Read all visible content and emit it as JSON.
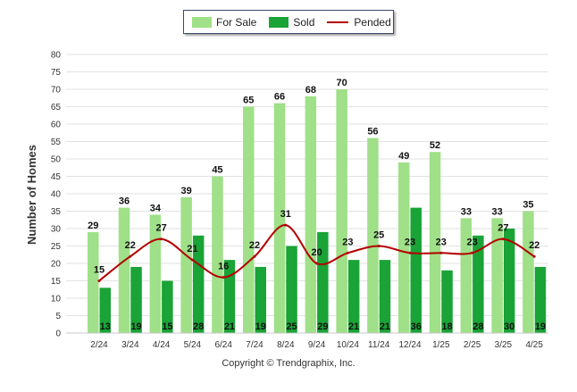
{
  "chart_data": {
    "type": "bar",
    "ylabel": "Number of Homes",
    "xlabel": "",
    "ylim": [
      0,
      80
    ],
    "yticks": [
      0,
      5,
      10,
      15,
      20,
      25,
      30,
      35,
      40,
      45,
      50,
      55,
      60,
      65,
      70,
      75,
      80
    ],
    "categories": [
      "2/24",
      "3/24",
      "4/24",
      "5/24",
      "6/24",
      "7/24",
      "8/24",
      "9/24",
      "10/24",
      "11/24",
      "12/24",
      "1/25",
      "2/25",
      "3/25",
      "4/25"
    ],
    "series": [
      {
        "name": "For Sale",
        "kind": "bar",
        "color": "#9fe088",
        "values": [
          29,
          36,
          34,
          39,
          45,
          65,
          66,
          68,
          70,
          56,
          49,
          52,
          33,
          33,
          35
        ]
      },
      {
        "name": "Sold",
        "kind": "bar",
        "color": "#1aa336",
        "values": [
          13,
          19,
          15,
          28,
          21,
          19,
          25,
          29,
          21,
          21,
          36,
          18,
          28,
          30,
          19
        ]
      },
      {
        "name": "Pended",
        "kind": "line",
        "color": "#b40000",
        "values": [
          15,
          22,
          27,
          21,
          16,
          22,
          31,
          20,
          23,
          25,
          23,
          23,
          23,
          27,
          22
        ]
      }
    ],
    "legend_position": "top-center",
    "grid": true
  },
  "footer": {
    "copyright": "Copyright © Trendgraphix, Inc."
  }
}
